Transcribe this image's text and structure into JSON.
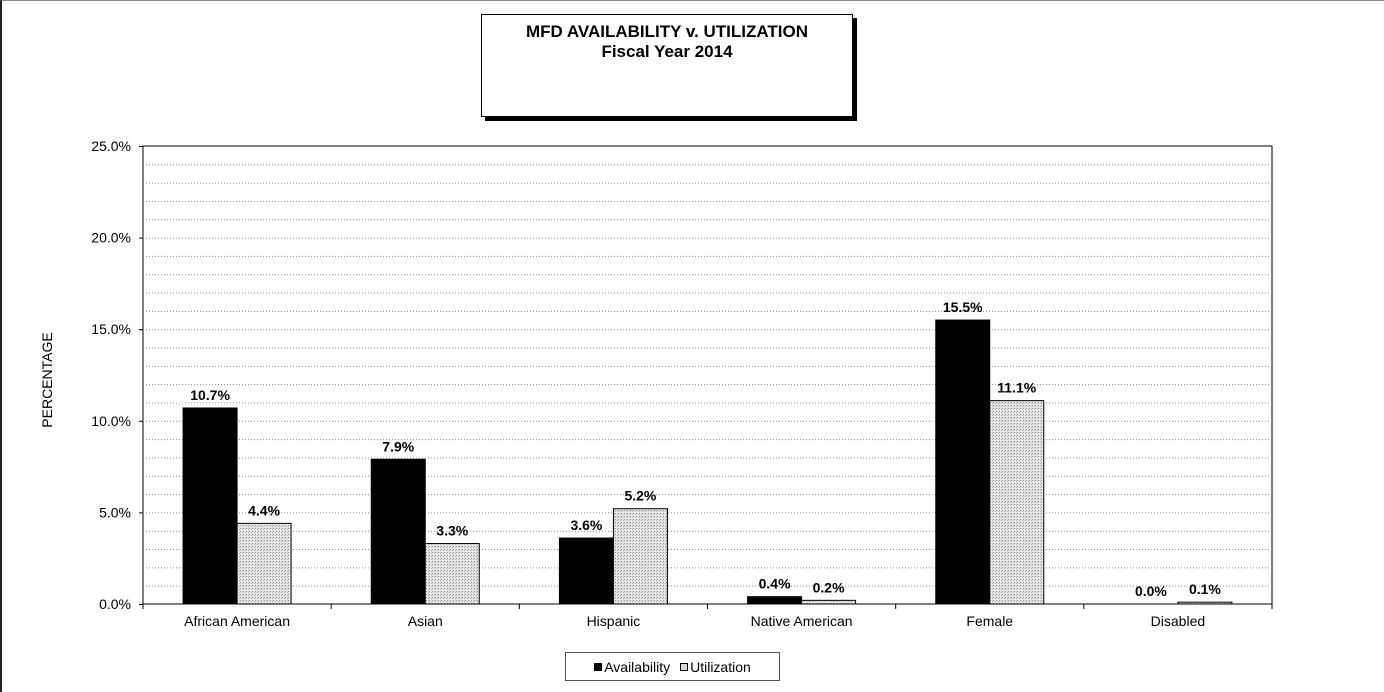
{
  "chart_data": {
    "type": "bar",
    "title": "MFD AVAILABILITY v. UTILIZATION",
    "subtitle": "Fiscal Year 2014",
    "xlabel": "",
    "ylabel": "PERCENTAGE",
    "ylim": [
      0,
      25
    ],
    "yticks": [
      "0.0%",
      "5.0%",
      "10.0%",
      "15.0%",
      "20.0%",
      "25.0%"
    ],
    "categories": [
      "African American",
      "Asian",
      "Hispanic",
      "Native American",
      "Female",
      "Disabled"
    ],
    "series": [
      {
        "name": "Availability",
        "color": "#000000",
        "values": [
          10.7,
          7.9,
          3.6,
          0.4,
          15.5,
          0.0
        ],
        "labels": [
          "10.7%",
          "7.9%",
          "3.6%",
          "0.4%",
          "15.5%",
          "0.0%"
        ]
      },
      {
        "name": "Utilization",
        "color": "#d9d9d9",
        "values": [
          4.4,
          3.3,
          5.2,
          0.2,
          11.1,
          0.1
        ],
        "labels": [
          "4.4%",
          "3.3%",
          "5.2%",
          "0.2%",
          "11.1%",
          "0.1%"
        ]
      }
    ],
    "grid": true,
    "legend_position": "bottom"
  }
}
